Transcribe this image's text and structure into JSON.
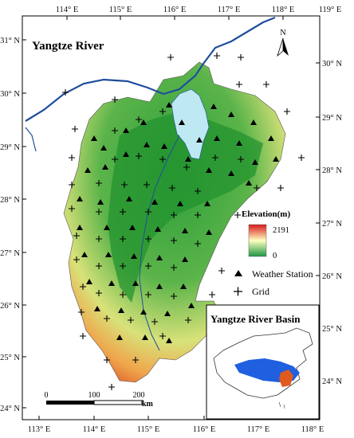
{
  "map": {
    "title": "Yangtze River",
    "north_label": "N",
    "top_ticks": [
      "114° E",
      "115° E",
      "116° E",
      "117° E",
      "118° E",
      "119° E"
    ],
    "bottom_ticks": [
      "113° E",
      "114° E",
      "115° E",
      "116° E",
      "117° E",
      "118° E"
    ],
    "left_ticks": [
      "31° N",
      "30° N",
      "29° N",
      "28° N",
      "27° N",
      "26° N",
      "25° N",
      "24° N"
    ],
    "right_ticks": [
      "30° N",
      "29° N",
      "28° N",
      "27° N",
      "26° N",
      "25° N",
      "24° N"
    ]
  },
  "legend": {
    "elevation_title": "Elevation(m)",
    "elevation_max": "2191",
    "elevation_min": "0",
    "weather_station_label": "Weather Station",
    "grid_label": "Grid",
    "colors": {
      "high": "#d7191c",
      "mid": "#ffffbf",
      "low": "#1a9641"
    }
  },
  "scale_bar": {
    "labels": [
      "0",
      "100",
      "200"
    ],
    "unit": "km"
  },
  "inset": {
    "title": "Yangtze River Basin"
  },
  "colors": {
    "river": "#1f4e9c",
    "lake": "#bfe9f2",
    "basin": "#1f5fe0",
    "region": "#e05a1e"
  }
}
